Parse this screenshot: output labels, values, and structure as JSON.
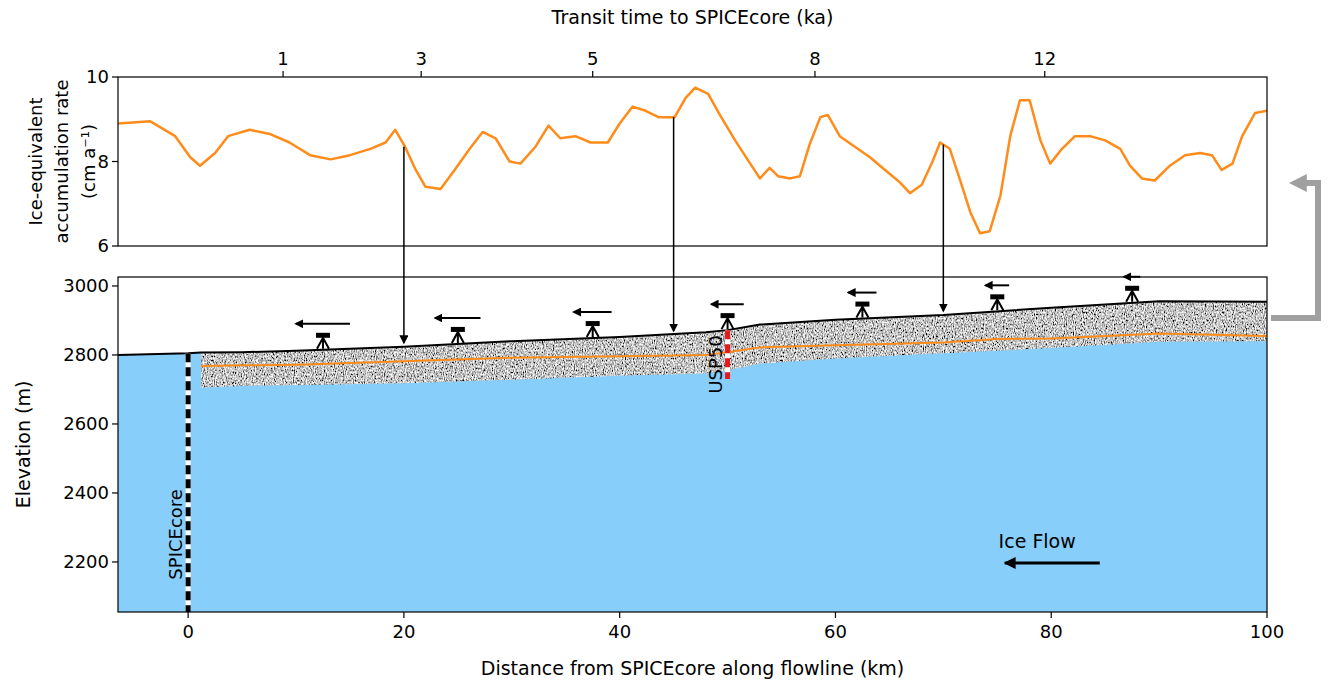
{
  "chart_data": [
    {
      "type": "line",
      "x2label": "Transit time to SPICEcore (ka)",
      "ylabel": [
        "Ice-equivalent",
        "accumulation rate",
        "(cm a⁻¹)"
      ],
      "xlim": [
        -6.5,
        100
      ],
      "ylim": [
        6,
        10
      ],
      "yticks": [
        6,
        8,
        10
      ],
      "x2ticks": [
        {
          "value": 8.8,
          "label": "1"
        },
        {
          "value": 21.6,
          "label": "3"
        },
        {
          "value": 37.5,
          "label": "5"
        },
        {
          "value": 58.1,
          "label": "8"
        },
        {
          "value": 79.4,
          "label": "12"
        }
      ],
      "series": [
        {
          "color": "#ff8c1a",
          "x": [
            -6.5,
            -3.5,
            -1.2,
            0.2,
            1.1,
            2.5,
            3.7,
            5.7,
            7.6,
            9.4,
            11.3,
            13.2,
            15.0,
            16.9,
            18.3,
            19.2,
            20.1,
            21.1,
            22.0,
            23.4,
            24.7,
            26.1,
            27.3,
            28.5,
            29.8,
            30.8,
            32.2,
            33.4,
            34.5,
            35.9,
            37.3,
            38.9,
            40.0,
            41.2,
            42.4,
            43.6,
            45.1,
            46.1,
            47.0,
            48.2,
            49.3,
            50.7,
            52.1,
            53.0,
            53.9,
            54.7,
            55.8,
            56.7,
            57.6,
            58.6,
            59.3,
            60.4,
            61.8,
            63.2,
            64.6,
            66.0,
            66.9,
            68.0,
            69.0,
            69.7,
            70.6,
            71.5,
            72.5,
            73.4,
            74.3,
            75.3,
            76.2,
            77.1,
            78.0,
            79.0,
            79.9,
            81.0,
            82.2,
            83.6,
            85.0,
            86.4,
            87.3,
            88.4,
            89.6,
            91.0,
            92.4,
            93.8,
            94.9,
            95.8,
            96.8,
            97.7,
            98.9,
            100.0
          ],
          "values": [
            8.9,
            8.95,
            8.6,
            8.1,
            7.9,
            8.2,
            8.6,
            8.75,
            8.65,
            8.45,
            8.15,
            8.05,
            8.15,
            8.3,
            8.45,
            8.75,
            8.35,
            7.8,
            7.4,
            7.35,
            7.8,
            8.3,
            8.7,
            8.55,
            8.0,
            7.95,
            8.35,
            8.85,
            8.55,
            8.6,
            8.45,
            8.45,
            8.9,
            9.3,
            9.2,
            9.05,
            9.05,
            9.5,
            9.75,
            9.6,
            9.1,
            8.5,
            7.95,
            7.6,
            7.85,
            7.65,
            7.6,
            7.65,
            8.4,
            9.05,
            9.1,
            8.6,
            8.35,
            8.1,
            7.8,
            7.5,
            7.25,
            7.45,
            8.0,
            8.45,
            8.3,
            7.6,
            6.8,
            6.3,
            6.35,
            7.2,
            8.6,
            9.45,
            9.45,
            8.5,
            7.95,
            8.3,
            8.6,
            8.6,
            8.5,
            8.3,
            7.9,
            7.6,
            7.55,
            7.9,
            8.15,
            8.2,
            8.15,
            7.8,
            7.95,
            8.6,
            9.15,
            9.2
          ]
        }
      ]
    },
    {
      "type": "area",
      "xlabel": "Distance from SPICEcore along flowline (km)",
      "ylabel": "Elevation (m)",
      "xlim": [
        -6.5,
        100
      ],
      "ylim": [
        2055,
        3026
      ],
      "xticks": [
        0,
        20,
        40,
        60,
        80,
        100
      ],
      "yticks": [
        2200,
        2400,
        2600,
        2800,
        3000
      ],
      "series": [
        {
          "type": "area",
          "color": "#87cefa",
          "x": [
            -6.5,
            0,
            1.2,
            5,
            10,
            20,
            30,
            40,
            48,
            50,
            53,
            60,
            70,
            80,
            90,
            100
          ],
          "values": [
            2800,
            2805,
            2807,
            2808,
            2812,
            2824,
            2840,
            2852,
            2866,
            2872,
            2888,
            2902,
            2916,
            2937,
            2956,
            2954
          ]
        },
        {
          "type": "band",
          "color": "#808080",
          "x": [
            1.2,
            5,
            10,
            20,
            30,
            40,
            48,
            50,
            53,
            60,
            70,
            80,
            90,
            100
          ],
          "values": [
            2807,
            2808,
            2812,
            2824,
            2840,
            2852,
            2866,
            2872,
            2888,
            2902,
            2916,
            2937,
            2956,
            2954
          ],
          "low": [
            2705,
            2710,
            2712,
            2718,
            2728,
            2740,
            2746,
            2755,
            2775,
            2790,
            2805,
            2820,
            2838,
            2840
          ]
        },
        {
          "type": "line",
          "color": "#ff8c1a",
          "x": [
            1.2,
            5,
            10,
            20,
            30,
            40,
            48,
            50,
            53,
            60,
            70,
            75,
            80,
            90,
            100
          ],
          "values": [
            2768,
            2770,
            2772,
            2782,
            2792,
            2796,
            2800,
            2808,
            2822,
            2828,
            2836,
            2846,
            2848,
            2862,
            2855
          ]
        }
      ],
      "boreholes": [
        {
          "label": "SPICEcore",
          "x": 0,
          "top": 2805,
          "bottom": 2055,
          "color": "#000000"
        },
        {
          "label": "USP50",
          "x": 50,
          "top": 2872,
          "bottom": 2730,
          "color": "#e41a1c"
        }
      ],
      "stakes": {
        "x": [
          12.5,
          25,
          37.5,
          50,
          62.5,
          75,
          87.5
        ],
        "arrow": [
          5.0,
          4.2,
          3.5,
          3.0,
          2.6,
          2.2,
          1.5
        ]
      },
      "annotations": [
        {
          "text": "Ice Flow",
          "x": 78.7,
          "y": 2262,
          "arrow_x": [
            84.5,
            75.7
          ],
          "arrow_y": 2197
        }
      ]
    }
  ],
  "links": {
    "x": [
      20,
      45,
      70
    ],
    "from": [
      8.35,
      9.05,
      8.4
    ],
    "to": [
      2836,
      2870,
      2928
    ]
  }
}
